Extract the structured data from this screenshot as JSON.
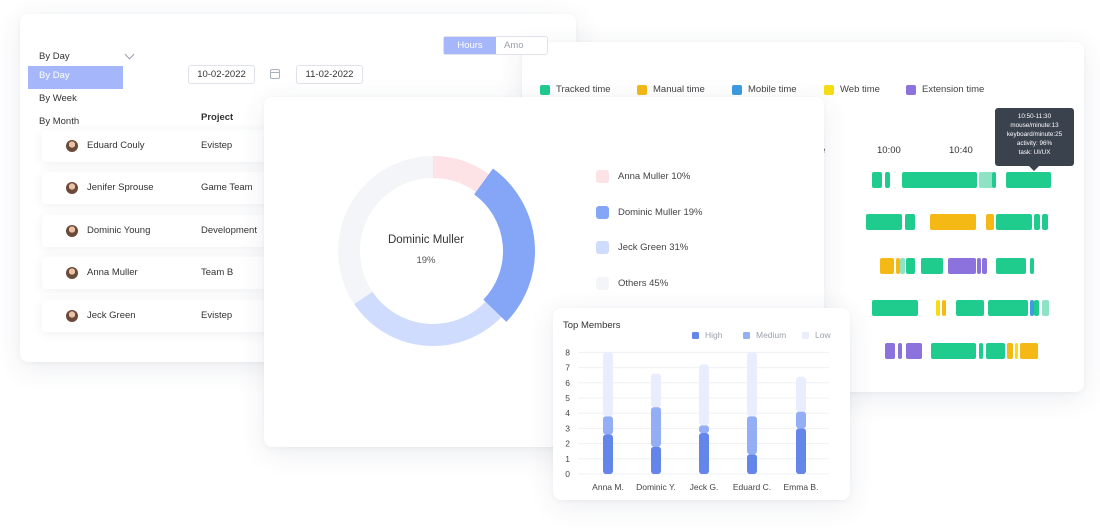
{
  "filters": {
    "period_selected": "By Day",
    "period_options": [
      "By Day",
      "By Week",
      "By Month"
    ],
    "date_from": "10-02-2022",
    "date_to": "11-02-2022"
  },
  "table": {
    "headers": {
      "project": "Project"
    },
    "rows": [
      {
        "name": "Eduard Couly",
        "project": "Evistep"
      },
      {
        "name": "Jenifer Sprouse",
        "project": "Game Team"
      },
      {
        "name": "Dominic Young",
        "project": "Development"
      },
      {
        "name": "Anna Muller",
        "project": "Team B"
      },
      {
        "name": "Jeck Green",
        "project": "Evistep"
      }
    ]
  },
  "toggle": {
    "active": "Hours",
    "inactive": "Amo"
  },
  "timeline": {
    "legend": [
      {
        "label": "Tracked time",
        "color": "#1fcc8e"
      },
      {
        "label": "Manual time",
        "color": "#f4b915"
      },
      {
        "label": "Mobile time",
        "color": "#3d9be0"
      },
      {
        "label": "Web time",
        "color": "#f4de12"
      },
      {
        "label": "Extension time",
        "color": "#8c72dc"
      }
    ],
    "ticks": [
      "e",
      "10:00",
      "10:40"
    ],
    "tooltip": {
      "lines": [
        "10:50-11:30",
        "mouse/minute:13",
        "keyboard/minute:25",
        "activity: 96%",
        "task: UI/UX"
      ]
    }
  },
  "donut": {
    "center_name": "Dominic Muller",
    "center_pct": "19%",
    "legend": [
      {
        "label": "Anna Muller 10%",
        "color": "#fde2e6"
      },
      {
        "label": "Dominic Muller 19%",
        "color": "#85a5f7"
      },
      {
        "label": "Jeck Green 31%",
        "color": "#d0dcfd"
      },
      {
        "label": "Others 45%",
        "color": "#f4f5f8"
      }
    ]
  },
  "chart_data": {
    "type": "bar",
    "title": "Top Members",
    "categories": [
      "Anna M.",
      "Dominic Y.",
      "Jeck G.",
      "Eduard C.",
      "Emma B."
    ],
    "series": [
      {
        "name": "High",
        "color": "#6485ea",
        "values": [
          2.6,
          1.8,
          2.7,
          1.3,
          3.0
        ]
      },
      {
        "name": "Medium",
        "color": "#93aef4",
        "values": [
          1.2,
          2.6,
          0.5,
          2.5,
          1.1
        ]
      },
      {
        "name": "Low",
        "color": "#e8eefd",
        "values": [
          4.2,
          2.2,
          4.0,
          4.2,
          2.3
        ]
      }
    ],
    "yticks": [
      "0",
      "1",
      "2",
      "3",
      "4",
      "5",
      "6",
      "7",
      "8"
    ],
    "ylim": [
      0,
      8
    ]
  }
}
